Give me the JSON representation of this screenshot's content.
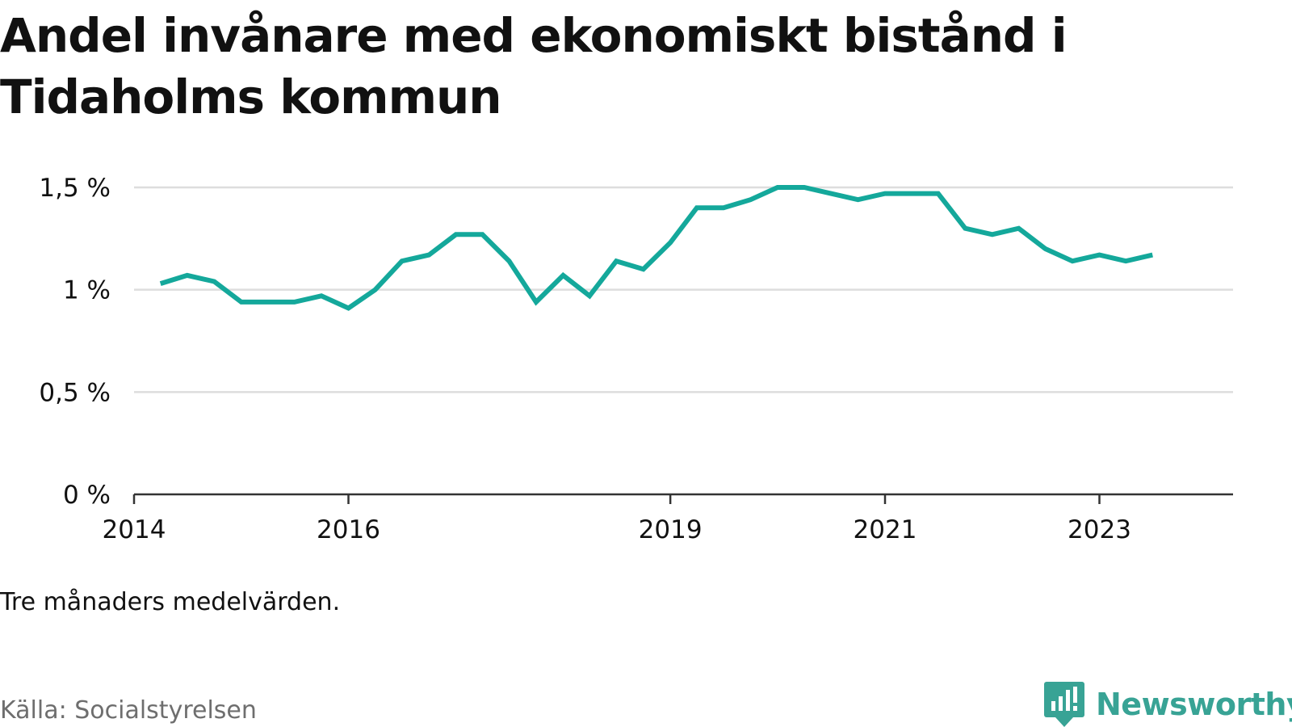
{
  "title": "Andel invånare med ekonomiskt bistånd i Tidaholms kommun",
  "note": "Tre månaders medelvärden.",
  "source": "Källa: Socialstyrelsen",
  "brand": {
    "name": "Newsworthy",
    "icon": "newsworthy-chart-bubble-icon",
    "color": "#38a395"
  },
  "colors": {
    "line": "#14a89b",
    "grid": "#dddddd",
    "axis": "#333333",
    "text": "#111111",
    "muted": "#6e6e6e"
  },
  "chart_data": {
    "type": "line",
    "title": "Andel invånare med ekonomiskt bistånd i Tidaholms kommun",
    "xlabel": "",
    "ylabel": "",
    "y_unit": "%",
    "ylim": [
      0,
      1.5
    ],
    "y_ticks": [
      0,
      0.5,
      1,
      1.5
    ],
    "y_tick_labels": [
      "0 %",
      "0,5 %",
      "1 %",
      "1,5 %"
    ],
    "xlim": [
      "2014-01-01",
      "2024-03-31"
    ],
    "x_ticks": [
      "2014-01-01",
      "2016-01-01",
      "2019-01-01",
      "2021-01-01",
      "2023-01-01"
    ],
    "x_tick_labels": [
      "2014",
      "2016",
      "2019",
      "2021",
      "2023"
    ],
    "grid": true,
    "legend": "none",
    "series": [
      {
        "x": [
          "2014-04-01",
          "2014-07-01",
          "2014-10-01",
          "2015-01-01",
          "2015-04-01",
          "2015-07-01",
          "2015-10-01",
          "2016-01-01",
          "2016-04-01",
          "2016-07-01",
          "2016-10-01",
          "2017-01-01",
          "2017-04-01",
          "2017-07-01",
          "2017-10-01",
          "2018-01-01",
          "2018-04-01",
          "2018-07-01",
          "2018-10-01",
          "2019-01-01",
          "2019-04-01",
          "2019-07-01",
          "2019-10-01",
          "2020-01-01",
          "2020-04-01",
          "2020-07-01",
          "2020-10-01",
          "2021-01-01",
          "2021-04-01",
          "2021-07-01",
          "2021-10-01",
          "2022-01-01",
          "2022-04-01",
          "2022-07-01",
          "2022-10-01",
          "2023-01-01",
          "2023-04-01",
          "2023-07-01"
        ],
        "values": [
          1.03,
          1.07,
          1.04,
          0.94,
          0.94,
          0.94,
          0.97,
          0.91,
          1.0,
          1.14,
          1.17,
          1.27,
          1.27,
          1.14,
          0.94,
          1.07,
          0.97,
          1.14,
          1.1,
          1.23,
          1.4,
          1.4,
          1.44,
          1.5,
          1.5,
          1.47,
          1.44,
          1.47,
          1.47,
          1.47,
          1.3,
          1.27,
          1.3,
          1.2,
          1.14,
          1.17,
          1.14,
          1.17
        ]
      }
    ]
  }
}
